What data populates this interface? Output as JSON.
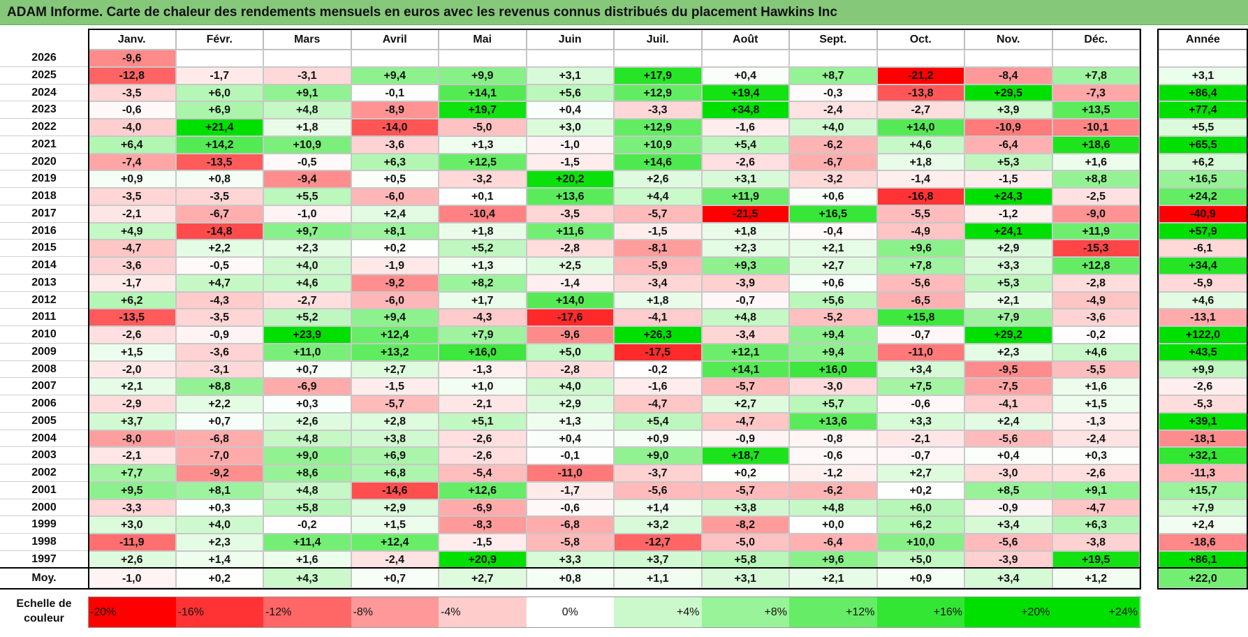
{
  "title": "ADAM Informe. Carte de chaleur des rendements mensuels en euros avec les revenus connus distribués du placement Hawkins Inc",
  "chart_data": {
    "type": "heatmap",
    "title": "ADAM Informe. Carte de chaleur des rendements mensuels en euros avec les revenus connus distribués du placement Hawkins Inc",
    "months": [
      "Janv.",
      "Févr.",
      "Mars",
      "Avril",
      "Mai",
      "Juin",
      "Juil.",
      "Août",
      "Sept.",
      "Oct.",
      "Nov.",
      "Déc."
    ],
    "year_header": "Année",
    "rows": [
      {
        "year": "2026",
        "values": [
          "-9,6",
          "",
          "",
          "",
          "",
          "",
          "",
          "",
          "",
          "",
          "",
          ""
        ],
        "annual": ""
      },
      {
        "year": "2025",
        "values": [
          "-12,8",
          "-1,7",
          "-3,1",
          "+9,4",
          "+9,9",
          "+3,1",
          "+17,9",
          "+0,4",
          "+8,7",
          "-21,2",
          "-8,4",
          "+7,8"
        ],
        "annual": "+3,1"
      },
      {
        "year": "2024",
        "values": [
          "-3,5",
          "+6,0",
          "+9,1",
          "-0,1",
          "+14,1",
          "+5,6",
          "+12,9",
          "+19,4",
          "-0,3",
          "-13,8",
          "+29,5",
          "-7,3"
        ],
        "annual": "+86,4"
      },
      {
        "year": "2023",
        "values": [
          "-0,6",
          "+6,9",
          "+4,8",
          "-8,9",
          "+19,7",
          "+0,4",
          "-3,3",
          "+34,8",
          "-2,4",
          "-2,7",
          "+3,9",
          "+13,5"
        ],
        "annual": "+77,4"
      },
      {
        "year": "2022",
        "values": [
          "-4,0",
          "+21,4",
          "+1,8",
          "-14,0",
          "-5,0",
          "+3,0",
          "+12,9",
          "-1,6",
          "+4,0",
          "+14,0",
          "-10,9",
          "-10,1"
        ],
        "annual": "+5,5"
      },
      {
        "year": "2021",
        "values": [
          "+6,4",
          "+14,2",
          "+10,9",
          "-3,6",
          "+1,3",
          "-1,0",
          "+10,9",
          "+5,4",
          "-6,2",
          "+4,6",
          "-6,4",
          "+18,6"
        ],
        "annual": "+65,5"
      },
      {
        "year": "2020",
        "values": [
          "-7,4",
          "-13,5",
          "-0,5",
          "+6,3",
          "+12,5",
          "-1,5",
          "+14,6",
          "-2,6",
          "-6,7",
          "+1,8",
          "+5,3",
          "+1,6"
        ],
        "annual": "+6,2"
      },
      {
        "year": "2019",
        "values": [
          "+0,9",
          "+0,8",
          "-9,4",
          "+0,5",
          "-3,2",
          "+20,2",
          "+2,6",
          "+3,1",
          "-3,2",
          "-1,4",
          "-1,5",
          "+8,8"
        ],
        "annual": "+16,5"
      },
      {
        "year": "2018",
        "values": [
          "-3,5",
          "-3,5",
          "+5,5",
          "-6,0",
          "+0,1",
          "+13,6",
          "+4,4",
          "+11,9",
          "+0,6",
          "-16,8",
          "+24,3",
          "-2,5"
        ],
        "annual": "+24,2"
      },
      {
        "year": "2017",
        "values": [
          "-2,1",
          "-6,7",
          "-1,0",
          "+2,4",
          "-10,4",
          "-3,5",
          "-5,7",
          "-21,5",
          "+16,5",
          "-5,5",
          "-1,2",
          "-9,0"
        ],
        "annual": "-40,9"
      },
      {
        "year": "2016",
        "values": [
          "+4,9",
          "-14,8",
          "+9,7",
          "+8,1",
          "+1,8",
          "+11,6",
          "-1,5",
          "+1,8",
          "-0,4",
          "-4,9",
          "+24,1",
          "+11,9"
        ],
        "annual": "+57,9"
      },
      {
        "year": "2015",
        "values": [
          "-4,7",
          "+2,2",
          "+2,3",
          "+0,2",
          "+5,2",
          "-2,8",
          "-8,1",
          "+2,3",
          "+2,1",
          "+9,6",
          "+2,9",
          "-15,3"
        ],
        "annual": "-6,1"
      },
      {
        "year": "2014",
        "values": [
          "-3,6",
          "-0,5",
          "+4,0",
          "-1,9",
          "+1,3",
          "+2,5",
          "-5,9",
          "+9,3",
          "+2,7",
          "+7,8",
          "+3,3",
          "+12,8"
        ],
        "annual": "+34,4"
      },
      {
        "year": "2013",
        "values": [
          "-1,7",
          "+4,7",
          "+4,6",
          "-9,2",
          "+8,2",
          "-1,4",
          "-3,4",
          "-3,9",
          "+0,6",
          "-5,6",
          "+5,3",
          "-2,8"
        ],
        "annual": "-5,9"
      },
      {
        "year": "2012",
        "values": [
          "+6,2",
          "-4,3",
          "-2,7",
          "-6,0",
          "+1,7",
          "+14,0",
          "+1,8",
          "-0,7",
          "+5,6",
          "-6,5",
          "+2,1",
          "-4,9"
        ],
        "annual": "+4,6"
      },
      {
        "year": "2011",
        "values": [
          "-13,5",
          "-3,5",
          "+5,2",
          "+9,4",
          "-4,3",
          "-17,6",
          "-4,1",
          "+4,8",
          "-5,2",
          "+15,8",
          "+7,9",
          "-3,6"
        ],
        "annual": "-13,1"
      },
      {
        "year": "2010",
        "values": [
          "-2,6",
          "-0,9",
          "+23,9",
          "+12,4",
          "+7,9",
          "-9,6",
          "+26,3",
          "-3,4",
          "+9,4",
          "-0,7",
          "+29,2",
          "-0,2"
        ],
        "annual": "+122,0"
      },
      {
        "year": "2009",
        "values": [
          "+1,5",
          "-3,6",
          "+11,0",
          "+13,2",
          "+16,0",
          "+5,0",
          "-17,5",
          "+12,1",
          "+9,4",
          "-11,0",
          "+2,3",
          "+4,6"
        ],
        "annual": "+43,5"
      },
      {
        "year": "2008",
        "values": [
          "-2,0",
          "-3,1",
          "+0,7",
          "+2,7",
          "-1,3",
          "-2,8",
          "-0,2",
          "+14,1",
          "+16,0",
          "+3,4",
          "-9,5",
          "-5,5"
        ],
        "annual": "+9,9"
      },
      {
        "year": "2007",
        "values": [
          "+2,1",
          "+8,8",
          "-6,9",
          "-1,5",
          "+1,0",
          "+4,0",
          "-1,6",
          "-5,7",
          "-3,0",
          "+7,5",
          "-7,5",
          "+1,6"
        ],
        "annual": "-2,6"
      },
      {
        "year": "2006",
        "values": [
          "-2,9",
          "+2,2",
          "+0,3",
          "-5,7",
          "-2,1",
          "+2,9",
          "-4,7",
          "+2,7",
          "+5,7",
          "-0,6",
          "-4,1",
          "+1,5"
        ],
        "annual": "-5,3"
      },
      {
        "year": "2005",
        "values": [
          "+3,7",
          "+0,7",
          "+2,6",
          "+2,8",
          "+5,1",
          "+1,3",
          "+5,4",
          "-4,7",
          "+13,6",
          "+3,3",
          "+2,4",
          "-1,3"
        ],
        "annual": "+39,1"
      },
      {
        "year": "2004",
        "values": [
          "-8,0",
          "-6,8",
          "+4,8",
          "+3,8",
          "-2,6",
          "+0,4",
          "+0,9",
          "-0,9",
          "-0,8",
          "-2,1",
          "-5,6",
          "-2,4"
        ],
        "annual": "-18,1"
      },
      {
        "year": "2003",
        "values": [
          "-2,1",
          "-7,0",
          "+9,0",
          "+6,9",
          "-2,6",
          "-0,1",
          "+9,0",
          "+18,7",
          "-0,6",
          "-0,7",
          "+0,4",
          "+0,3"
        ],
        "annual": "+32,1"
      },
      {
        "year": "2002",
        "values": [
          "+7,7",
          "-9,2",
          "+8,6",
          "+6,8",
          "-5,4",
          "-11,0",
          "-3,7",
          "+0,2",
          "-1,2",
          "+2,7",
          "-3,0",
          "-2,6"
        ],
        "annual": "-11,3"
      },
      {
        "year": "2001",
        "values": [
          "+9,5",
          "+8,1",
          "+4,8",
          "-14,6",
          "+12,6",
          "-1,7",
          "-5,6",
          "-5,7",
          "-6,2",
          "+0,2",
          "+8,5",
          "+9,1"
        ],
        "annual": "+15,7"
      },
      {
        "year": "2000",
        "values": [
          "-3,3",
          "+0,3",
          "+5,8",
          "+2,9",
          "-6,9",
          "-0,6",
          "+1,4",
          "+3,8",
          "+4,8",
          "+6,0",
          "-0,9",
          "-4,7"
        ],
        "annual": "+7,9"
      },
      {
        "year": "1999",
        "values": [
          "+3,0",
          "+4,0",
          "-0,2",
          "+1,5",
          "-8,3",
          "-6,8",
          "+3,2",
          "-8,2",
          "+0,0",
          "+6,2",
          "+3,4",
          "+6,3"
        ],
        "annual": "+2,4"
      },
      {
        "year": "1998",
        "values": [
          "-11,9",
          "+2,3",
          "+11,4",
          "+12,4",
          "-1,5",
          "-5,8",
          "-12,7",
          "-5,0",
          "-6,4",
          "+10,0",
          "-5,6",
          "-3,8"
        ],
        "annual": "-18,6"
      },
      {
        "year": "1997",
        "values": [
          "+2,6",
          "+1,4",
          "+1,6",
          "-2,4",
          "+20,9",
          "+3,3",
          "+3,7",
          "+5,8",
          "+9,6",
          "+5,0",
          "-3,9",
          "+19,5"
        ],
        "annual": "+86,1"
      }
    ],
    "average": {
      "label": "Moy.",
      "values": [
        "-1,0",
        "+0,2",
        "+4,3",
        "+0,7",
        "+2,7",
        "+0,8",
        "+1,1",
        "+3,1",
        "+2,1",
        "+0,9",
        "+3,4",
        "+1,2"
      ],
      "annual": "+22,0"
    },
    "scale": {
      "label_line1": "Echelle de",
      "label_line2": "couleur",
      "stops": [
        "-20%",
        "-16%",
        "-12%",
        "-8%",
        "-4%",
        "0%",
        "+4%",
        "+8%",
        "+12%",
        "+16%",
        "+20%",
        "+24%"
      ]
    },
    "colors": {
      "negative_full": "#ff0000",
      "neutral": "#ffffff",
      "positive_full": "#00e000",
      "title_bar": "#85c87a"
    }
  }
}
